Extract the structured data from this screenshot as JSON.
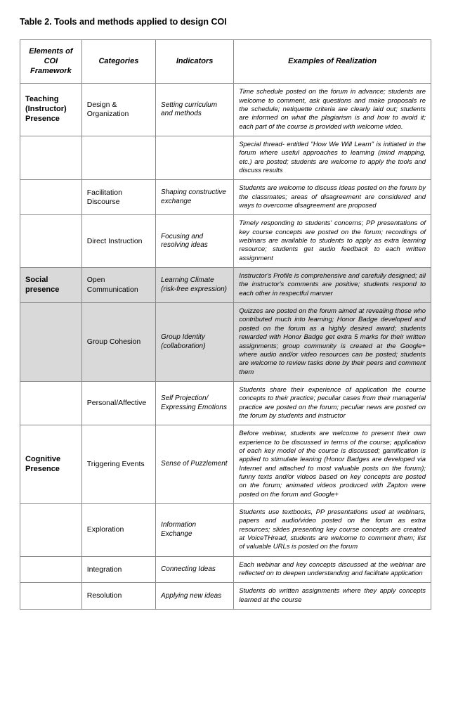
{
  "title": "Table 2. Tools and methods applied to design COI",
  "headers": {
    "col1": "Elements of COI Framework",
    "col2": "Categories",
    "col3": "Indicators",
    "col4": "Examples of Realization"
  },
  "rows": [
    {
      "element": "Teaching (Instructor) Presence",
      "category": "Design & Organization",
      "indicator": "Setting curriculum and methods",
      "example": "Time schedule posted on the forum in advance; students are welcome to comment, ask questions and make proposals re the schedule; netiquette criteria are clearly laid out; students are informed on what the plagiarism is and how to avoid it; each part of the course is provided with welcome video.",
      "shaded": false
    },
    {
      "element": "",
      "category": "",
      "indicator": "",
      "example": "Special thread- entitled \"How We Will Learn\" is initiated in the forum where useful approaches to learning (mind mapping, etc.) are posted; students are welcome to apply the tools and discuss results",
      "shaded": false
    },
    {
      "element": "",
      "category": "Facilitation Discourse",
      "indicator": "Shaping constructive exchange",
      "example": "Students are welcome to discuss ideas posted on the forum by the classmates; areas of disagreement are considered and ways to overcome disagreement are proposed",
      "shaded": false
    },
    {
      "element": "",
      "category": "Direct Instruction",
      "indicator": "Focusing and resolving ideas",
      "example": "Timely responding to students' concerns; PP presentations of key course concepts are posted on the forum; recordings of webinars are available to students to apply as extra learning resource; students get audio feedback to each written assignment",
      "shaded": false
    },
    {
      "element": "Social presence",
      "category": "Open Communication",
      "indicator": "Learning Climate (risk-free expression)",
      "example": "Instructor's Profile is comprehensive and carefully designed; all the instructor's comments are positive; students respond to each other in respectful manner",
      "shaded": true
    },
    {
      "element": "",
      "category": "Group Cohesion",
      "indicator": "Group Identity (collaboration)",
      "example": "Quizzes are posted on the forum aimed at revealing those who contributed much into learning; Honor Badge developed and posted on the forum as a highly desired award; students rewarded with Honor Badge get extra 5 marks for their written assignments; group community is created at the Google+ where audio and/or video resources can be posted; students are welcome to review tasks done by their peers and comment them",
      "shaded": true
    },
    {
      "element": "",
      "category": "Personal/Affective",
      "indicator": "Self Projection/ Expressing Emotions",
      "example": "Students share their experience of application the course concepts to their practice; peculiar cases from their managerial practice are posted on the forum; peculiar news are posted on the forum by students and instructor",
      "shaded": false
    },
    {
      "element": "Cognitive Presence",
      "category": "Triggering Events",
      "indicator": "Sense of Puzzlement",
      "example": "Before webinar, students are welcome to present their own experience to be discussed in terms of the course; application of each key model of the course is discussed; gamification is applied to stimulate leaning (Honor Badges are developed via Internet and attached to most valuable posts on the forum); funny texts and/or videos based on key concepts are posted on the forum; animated videos produced with Zapton were posted on the forum and Google+",
      "shaded": false
    },
    {
      "element": "",
      "category": "Exploration",
      "indicator": "Information Exchange",
      "example": "Students use textbooks, PP presentations used at webinars, papers and audio/video posted on the forum as extra resources; slides presenting key course concepts are created at VoiceTHread, students are welcome to comment them; list of valuable URLs is posted on the forum",
      "shaded": false
    },
    {
      "element": "",
      "category": "Integration",
      "indicator": "Connecting Ideas",
      "example": "Each webinar and key concepts discussed at the webinar are reflected on to deepen understanding and facilitate application",
      "shaded": false
    },
    {
      "element": "",
      "category": "Resolution",
      "indicator": "Applying new ideas",
      "example": "Students do written assignments where they apply concepts learned at the course",
      "shaded": false
    }
  ]
}
